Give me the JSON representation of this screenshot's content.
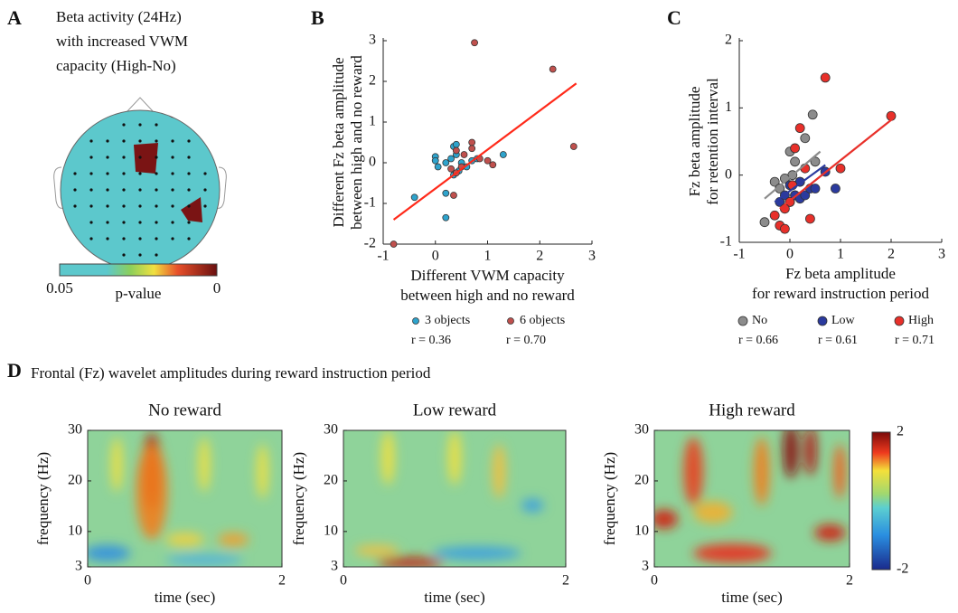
{
  "chart_data": [
    {
      "type": "topomap",
      "panel": "A",
      "title": [
        "Beta activity (24Hz)",
        "with increased VWM",
        "capacity (High-No)"
      ],
      "colorbar": {
        "label": "p-value",
        "clim": [
          0.05,
          0
        ],
        "ticks": [
          0.05,
          0
        ]
      }
    },
    {
      "type": "scatter",
      "panel": "B",
      "ylabel": [
        "Different Fz beta amplitude",
        "between high and no reward"
      ],
      "xlabel": [
        "Different VWM capacity",
        "between high and no reward"
      ],
      "xlim": [
        -1,
        3
      ],
      "ylim": [
        -2,
        3
      ],
      "xticks": [
        -1,
        0,
        1,
        2,
        3
      ],
      "yticks": [
        -2,
        -1,
        0,
        1,
        2,
        3
      ],
      "series": [
        {
          "name": "3 objects",
          "color": "#2ea3cc",
          "r_label": "r = 0.36",
          "x": [
            -0.4,
            0,
            0,
            0.05,
            0.2,
            0.2,
            0.3,
            0.35,
            0.4,
            0.4,
            0.45,
            0.5,
            0.6,
            0.7,
            0.8,
            1.3,
            0.2,
            0.35
          ],
          "y": [
            -0.85,
            0.15,
            0.05,
            -0.1,
            -0.75,
            -1.35,
            0.1,
            0.4,
            0.45,
            0.2,
            -0.2,
            0,
            -0.1,
            0.05,
            0.1,
            0.2,
            0,
            -0.3
          ]
        },
        {
          "name": "6 objects",
          "color": "#c0504d",
          "r_label": "r = 0.70",
          "x": [
            -0.8,
            0.35,
            0.4,
            0.5,
            0.55,
            0.7,
            0.7,
            0.75,
            0.85,
            1.0,
            1.1,
            2.25,
            2.65,
            0.4,
            0.3
          ],
          "y": [
            -2,
            -0.8,
            -0.25,
            -0.1,
            0.2,
            0.5,
            0.35,
            2.95,
            0.1,
            0.05,
            -0.05,
            2.3,
            0.4,
            0.3,
            -0.15
          ]
        }
      ],
      "fit": {
        "color": "#ff2a1a",
        "x": [
          -0.8,
          2.7
        ],
        "y": [
          -1.4,
          1.95
        ]
      }
    },
    {
      "type": "scatter",
      "panel": "C",
      "ylabel": [
        "Fz beta amplitude",
        "for retention interval"
      ],
      "xlabel": [
        "Fz beta amplitude",
        "for reward instruction period"
      ],
      "xlim": [
        -1,
        3
      ],
      "ylim": [
        -1,
        2
      ],
      "xticks": [
        -1,
        0,
        1,
        2,
        3
      ],
      "yticks": [
        -1,
        0,
        1,
        2
      ],
      "series": [
        {
          "name": "No",
          "color": "#8c8c8c",
          "r_label": "r = 0.66",
          "x": [
            -0.5,
            -0.3,
            -0.2,
            0,
            0.05,
            0.1,
            0.2,
            0.3,
            0.45,
            0.5,
            0.1,
            -0.1
          ],
          "y": [
            -0.7,
            -0.1,
            -0.2,
            0.35,
            0,
            0.2,
            -0.1,
            0.55,
            0.9,
            0.2,
            -0.3,
            -0.05
          ],
          "fit": {
            "x": [
              -0.5,
              0.6
            ],
            "y": [
              -0.35,
              0.35
            ]
          }
        },
        {
          "name": "Low",
          "color": "#2b3a9e",
          "r_label": "r = 0.61",
          "x": [
            -0.2,
            -0.1,
            0,
            0.1,
            0.2,
            0.3,
            0.4,
            0.5,
            0.7,
            0.9,
            0.2,
            0
          ],
          "y": [
            -0.4,
            -0.3,
            -0.15,
            -0.3,
            -0.35,
            -0.3,
            -0.2,
            -0.2,
            0.05,
            -0.2,
            -0.1,
            -0.4
          ],
          "fit": {
            "x": [
              -0.3,
              0.7
            ],
            "y": [
              -0.4,
              0.15
            ]
          }
        },
        {
          "name": "High",
          "color": "#e8302a",
          "r_label": "r = 0.71",
          "x": [
            -0.3,
            -0.2,
            -0.1,
            0,
            0.05,
            0.1,
            0.2,
            0.3,
            0.4,
            0.7,
            1.0,
            2.0,
            -0.1
          ],
          "y": [
            -0.6,
            -0.75,
            -0.8,
            -0.4,
            -0.15,
            0.4,
            0.7,
            0.1,
            -0.65,
            1.45,
            0.1,
            0.88,
            -0.5
          ],
          "fit": {
            "x": [
              -0.2,
              2.05
            ],
            "y": [
              -0.5,
              0.85
            ]
          }
        }
      ]
    },
    {
      "type": "heatmap",
      "panel": "D",
      "title": "Frontal (Fz) wavelet amplitudes during reward instruction period",
      "subplots": [
        {
          "title": "No reward"
        },
        {
          "title": "Low reward"
        },
        {
          "title": "High reward"
        }
      ],
      "xlim": [
        0,
        2
      ],
      "xticks": [
        0,
        2
      ],
      "ylim": [
        3,
        30
      ],
      "yticks": [
        3,
        10,
        20,
        30
      ],
      "xlabel": "time (sec)",
      "ylabel": "frequency (Hz)",
      "colorbar": {
        "clim": [
          -2,
          2
        ],
        "ticks": [
          2,
          -2
        ]
      }
    }
  ]
}
